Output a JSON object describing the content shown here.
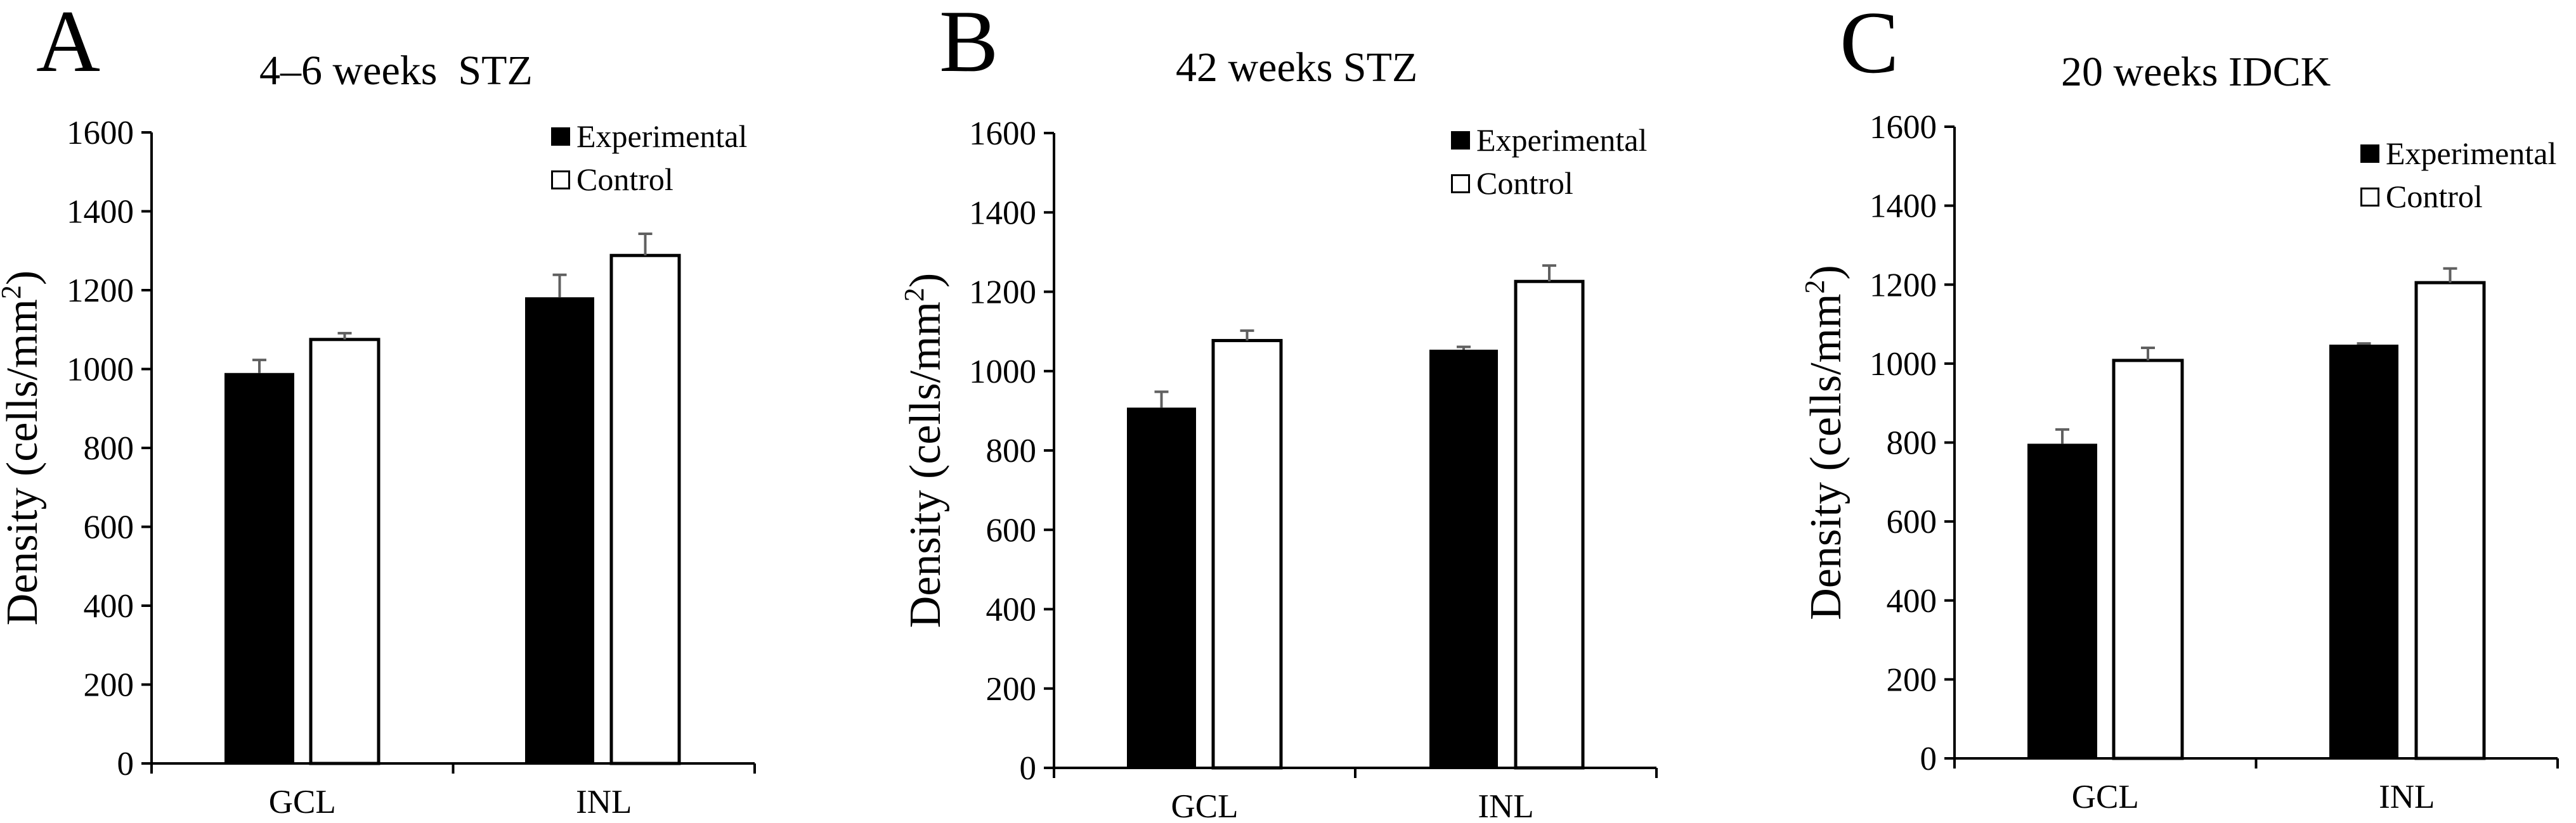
{
  "figure": {
    "panels": [
      {
        "letter": "A",
        "title": "4–6 weeks  STZ"
      },
      {
        "letter": "B",
        "title": "42 weeks STZ"
      },
      {
        "letter": "C",
        "title": "20 weeks IDCK"
      }
    ]
  },
  "chart_data": [
    {
      "type": "bar",
      "panel": "A",
      "title": "4–6 weeks  STZ",
      "xlabel": "",
      "ylabel": "Density (cells/mm²)",
      "ylabel_main": "Density (cells/mm",
      "ylabel_sup": "2",
      "ylabel_close": ")",
      "categories": [
        "GCL",
        "INL"
      ],
      "ylim": [
        0,
        1600
      ],
      "yticks": [
        0,
        200,
        400,
        600,
        800,
        1000,
        1200,
        1400,
        1600
      ],
      "grid": false,
      "legend": "top-right",
      "series": [
        {
          "name": "Experimental",
          "color": "#000000",
          "values": [
            990,
            1182
          ],
          "errors": [
            33,
            57
          ]
        },
        {
          "name": "Control",
          "color": "#ffffff",
          "values": [
            1075,
            1288
          ],
          "errors": [
            16,
            55
          ]
        }
      ]
    },
    {
      "type": "bar",
      "panel": "B",
      "title": "42 weeks STZ",
      "xlabel": "",
      "ylabel": "Density (cells/mm²)",
      "ylabel_main": "Density (cells/mm",
      "ylabel_sup": "2",
      "ylabel_close": ")",
      "categories": [
        "GCL",
        "INL"
      ],
      "ylim": [
        0,
        1600
      ],
      "yticks": [
        0,
        200,
        400,
        600,
        800,
        1000,
        1200,
        1400,
        1600
      ],
      "grid": false,
      "legend": "top-right",
      "series": [
        {
          "name": "Experimental",
          "color": "#000000",
          "values": [
            908,
            1054
          ],
          "errors": [
            40,
            7
          ]
        },
        {
          "name": "Control",
          "color": "#ffffff",
          "values": [
            1077,
            1226
          ],
          "errors": [
            25,
            40
          ]
        }
      ]
    },
    {
      "type": "bar",
      "panel": "C",
      "title": "20 weeks IDCK",
      "xlabel": "",
      "ylabel": "Density (cells/mm²)",
      "ylabel_main": "Density (cells/mm",
      "ylabel_sup": "2",
      "ylabel_close": ")",
      "categories": [
        "GCL",
        "INL"
      ],
      "ylim": [
        0,
        1600
      ],
      "yticks": [
        0,
        200,
        400,
        600,
        800,
        1000,
        1200,
        1400,
        1600
      ],
      "grid": false,
      "legend": "top-right",
      "series": [
        {
          "name": "Experimental",
          "color": "#000000",
          "values": [
            797,
            1048
          ],
          "errors": [
            36,
            3
          ]
        },
        {
          "name": "Control",
          "color": "#ffffff",
          "values": [
            1008,
            1205
          ],
          "errors": [
            32,
            36
          ]
        }
      ]
    }
  ]
}
